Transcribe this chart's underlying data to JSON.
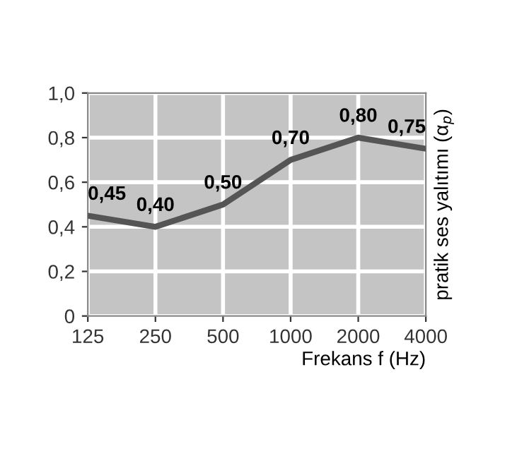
{
  "chart_data": {
    "type": "line",
    "xlabel": "Frekans f (Hz)",
    "ylabel": "pratik ses yalıtımı (α$_{p}$)",
    "categories": [
      "125",
      "250",
      "500",
      "1000",
      "2000",
      "4000"
    ],
    "series": [
      {
        "color": "#555555",
        "values": [
          0.45,
          0.4,
          0.5,
          0.7,
          0.8,
          0.75
        ],
        "value_labels": [
          "0,45",
          "0,40",
          "0,50",
          "0,70",
          "0,80",
          "0,75"
        ]
      }
    ],
    "ylim": [
      0,
      1
    ],
    "yticks": [
      {
        "value": 0,
        "label": "0"
      },
      {
        "value": 0.2,
        "label": "0,2"
      },
      {
        "value": 0.4,
        "label": "0,4"
      },
      {
        "value": 0.6,
        "label": "0,6"
      },
      {
        "value": 0.8,
        "label": "0,8"
      },
      {
        "value": 1,
        "label": "1,0"
      }
    ],
    "grid": true,
    "marker": "none",
    "line_style": "solid"
  }
}
